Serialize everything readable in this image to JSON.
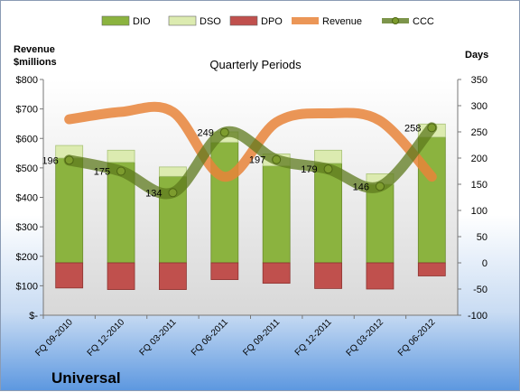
{
  "chart_data": {
    "type": "bar",
    "title": "Quarterly Periods",
    "company": "Universal",
    "left_axis_label": [
      "Revenue",
      "$millions"
    ],
    "right_axis_label": "Days",
    "categories": [
      "FQ 09-2010",
      "FQ 12-2010",
      "FQ 03-2011",
      "FQ 06-2011",
      "FQ 09-2011",
      "FQ 12-2011",
      "FQ 03-2012",
      "FQ 06-2012"
    ],
    "left_axis": {
      "min": 0,
      "max": 800,
      "step": 100,
      "tick_labels": [
        "$-",
        "$100",
        "$200",
        "$300",
        "$400",
        "$500",
        "$600",
        "$700",
        "$800"
      ]
    },
    "right_axis": {
      "min": -100,
      "max": 350,
      "step": 50,
      "tick_labels": [
        "-100",
        "-50",
        "0",
        "50",
        "100",
        "150",
        "200",
        "250",
        "300",
        "350"
      ]
    },
    "series": [
      {
        "name": "DIO",
        "axis": "right",
        "kind": "stacked-bar",
        "color": "#8bb33f",
        "values": [
          200,
          192,
          165,
          230,
          185,
          190,
          150,
          240
        ]
      },
      {
        "name": "DSO",
        "axis": "right",
        "kind": "stacked-bar",
        "color": "#dcebb0",
        "values": [
          24,
          23,
          18,
          20,
          23,
          25,
          20,
          25
        ]
      },
      {
        "name": "DPO",
        "axis": "right",
        "kind": "bar-below-zero",
        "color": "#c0504d",
        "values": [
          -48,
          -51,
          -51,
          -32,
          -39,
          -49,
          -50,
          -25
        ]
      },
      {
        "name": "Revenue",
        "axis": "left",
        "kind": "line",
        "color": "#e8843a",
        "values": [
          665,
          690,
          690,
          470,
          655,
          685,
          660,
          470
        ]
      },
      {
        "name": "CCC",
        "axis": "right",
        "kind": "line",
        "color": "#5d7a1e",
        "values": [
          196,
          175,
          134,
          249,
          197,
          179,
          146,
          258
        ],
        "data_labels": [
          "196",
          "175",
          "134",
          "249",
          "197",
          "179",
          "146",
          "258"
        ]
      }
    ],
    "legend": {
      "placement": "top",
      "entries": [
        "DIO",
        "DSO",
        "DPO",
        "Revenue",
        "CCC"
      ]
    },
    "grid": false
  }
}
